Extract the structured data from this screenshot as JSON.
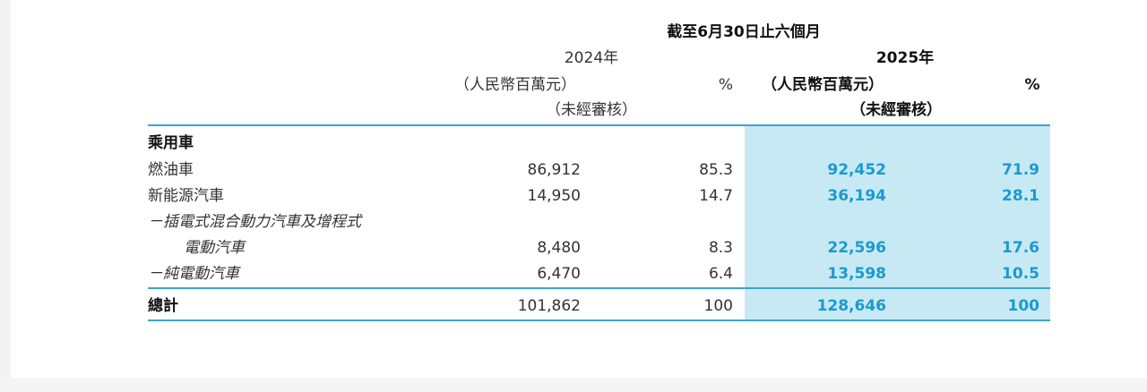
{
  "header": {
    "period": "截至6月30日止六個月",
    "columns": [
      {
        "year": "2024年",
        "unit": "（人民幣百萬元）",
        "audit": "（未經審核）",
        "pct": "%"
      },
      {
        "year": "2025年",
        "unit": "（人民幣百萬元）",
        "audit": "（未經審核）",
        "pct": "%"
      }
    ]
  },
  "table": {
    "rows": [
      {
        "label": "乘用車"
      },
      {
        "label": "燃油車",
        "values": [
          "86,912",
          "85.3",
          "92,452",
          "71.9"
        ]
      },
      {
        "label": "新能源汽車",
        "values": [
          "14,950",
          "14.7",
          "36,194",
          "28.1"
        ]
      },
      {
        "label": "－插電式混合動力汽車及增程式"
      },
      {
        "label": "電動汽車",
        "values": [
          "8,480",
          "8.3",
          "22,596",
          "17.6"
        ]
      },
      {
        "label": "－純電動汽車",
        "values": [
          "6,470",
          "6.4",
          "13,598",
          "10.5"
        ]
      },
      {
        "label": "總計",
        "values": [
          "101,862",
          "100",
          "128,646",
          "100"
        ]
      }
    ]
  }
}
